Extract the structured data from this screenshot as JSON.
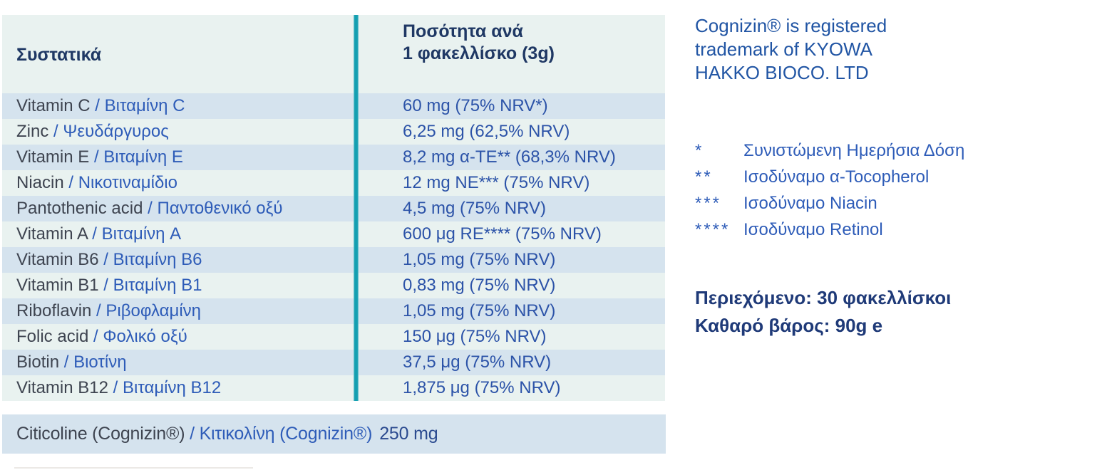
{
  "table": {
    "header": {
      "ingredients": "Συστατικά",
      "quantity_line1": "Ποσότητα ανά",
      "quantity_line2": "1 φακελλίσκο (3g)"
    },
    "separator": " / ",
    "rows": [
      {
        "name_en": "Vitamin C",
        "name_el": "Βιταμίνη C",
        "value": "60 mg (75% NRV*)"
      },
      {
        "name_en": "Zinc",
        "name_el": "Ψευδάργυρος",
        "value": "6,25 mg (62,5% NRV)"
      },
      {
        "name_en": "Vitamin E",
        "name_el": "Βιταμίνη E",
        "value": "8,2 mg α-TE** (68,3% NRV)"
      },
      {
        "name_en": "Niacin",
        "name_el": "Νικοτιναμίδιο",
        "value": "12 mg NE*** (75% NRV)"
      },
      {
        "name_en": "Pantothenic acid",
        "name_el": "Παντοθενικό οξύ",
        "value": "4,5 mg (75% NRV)"
      },
      {
        "name_en": "Vitamin A",
        "name_el": "Βιταμίνη A",
        "value": "600 μg RE**** (75% NRV)"
      },
      {
        "name_en": "Vitamin B6",
        "name_el": "Βιταμίνη B6",
        "value": "1,05 mg (75% NRV)"
      },
      {
        "name_en": "Vitamin B1",
        "name_el": "Βιταμίνη B1",
        "value": "0,83 mg (75% NRV)"
      },
      {
        "name_en": "Riboflavin",
        "name_el": "Ριβοφλαμίνη",
        "value": "1,05 mg (75% NRV)"
      },
      {
        "name_en": "Folic acid",
        "name_el": "Φολικό οξύ",
        "value": "150 μg (75% NRV)"
      },
      {
        "name_en": "Biotin",
        "name_el": "Βιοτίνη",
        "value": "37,5 μg (75% NRV)"
      },
      {
        "name_en": "Vitamin B12",
        "name_el": "Βιταμίνη B12",
        "value": "1,875 μg (75% NRV)"
      }
    ],
    "extra_row": {
      "name_en": "Citicoline (Cognizin®)",
      "name_el": "Κιτικολίνη (Cognizin®)",
      "value": "250 mg"
    }
  },
  "side_panel": {
    "trademark_lines": [
      "Cognizin® is registered",
      "trademark of KYOWA",
      "HAKKO BIOCO. LTD"
    ],
    "footnotes": [
      {
        "marker": "*",
        "text": "Συνιστώμενη Ημερήσια Δόση"
      },
      {
        "marker": "**",
        "text": "Ισοδύναμο α-Tocopherol"
      },
      {
        "marker": "***",
        "text": "Ισοδύναμο Niacin"
      },
      {
        "marker": "****",
        "text": "Ισοδύναμο Retinol"
      }
    ],
    "content_line1": "Περιεχόμενο: 30 φακελλίσκοι",
    "content_line2": "Καθαρό βάρος: 90g e"
  },
  "colors": {
    "table_bg": "#e9f2f0",
    "row_stripe_blue": "#d5e3ee",
    "divider_teal": "#149fb1",
    "heading_navy": "#1f3864",
    "english_text": "#3e4450",
    "greek_text": "#2e5cb8",
    "value_text": "#2c53a8",
    "value_text_dark": "#2a4a8f",
    "trademark_text": "#2155a4",
    "content_navy": "#1f3a78"
  }
}
